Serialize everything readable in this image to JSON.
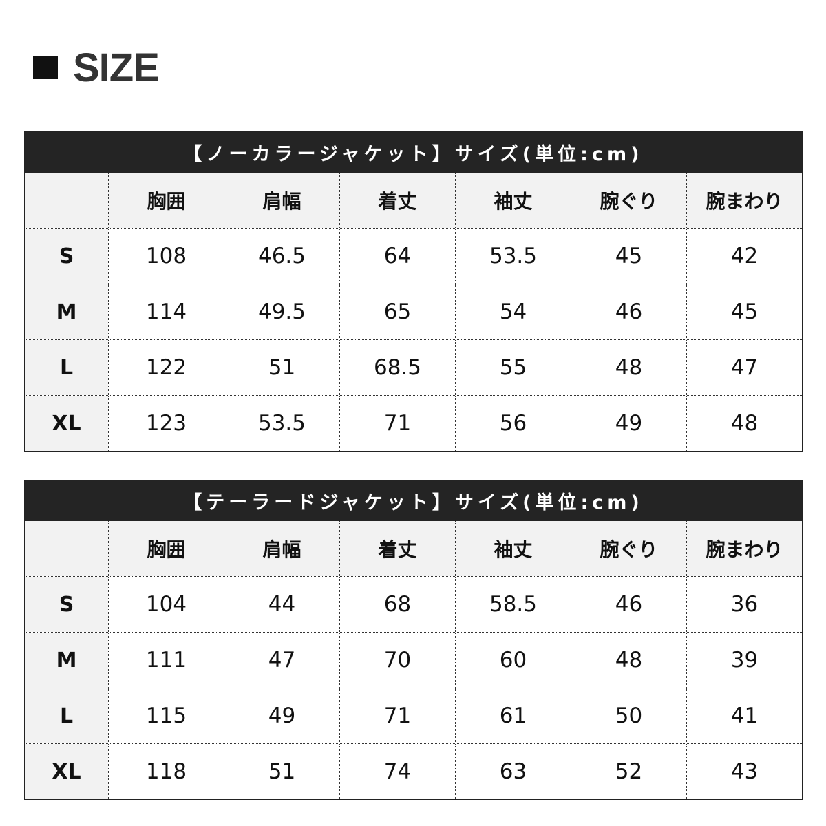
{
  "title": "SIZE",
  "tables": [
    {
      "caption": "【ノーカラージャケット】サイズ(単位:cm)",
      "headers": [
        "",
        "胸囲",
        "肩幅",
        "着丈",
        "袖丈",
        "腕ぐり",
        "腕まわり"
      ],
      "rows": [
        [
          "S",
          "108",
          "46.5",
          "64",
          "53.5",
          "45",
          "42"
        ],
        [
          "M",
          "114",
          "49.5",
          "65",
          "54",
          "46",
          "45"
        ],
        [
          "L",
          "122",
          "51",
          "68.5",
          "55",
          "48",
          "47"
        ],
        [
          "XL",
          "123",
          "53.5",
          "71",
          "56",
          "49",
          "48"
        ]
      ]
    },
    {
      "caption": "【テーラードジャケット】サイズ(単位:cm)",
      "headers": [
        "",
        "胸囲",
        "肩幅",
        "着丈",
        "袖丈",
        "腕ぐり",
        "腕まわり"
      ],
      "rows": [
        [
          "S",
          "104",
          "44",
          "68",
          "58.5",
          "46",
          "36"
        ],
        [
          "M",
          "111",
          "47",
          "70",
          "60",
          "48",
          "39"
        ],
        [
          "L",
          "115",
          "49",
          "71",
          "61",
          "50",
          "41"
        ],
        [
          "XL",
          "118",
          "51",
          "74",
          "63",
          "52",
          "43"
        ]
      ]
    }
  ]
}
